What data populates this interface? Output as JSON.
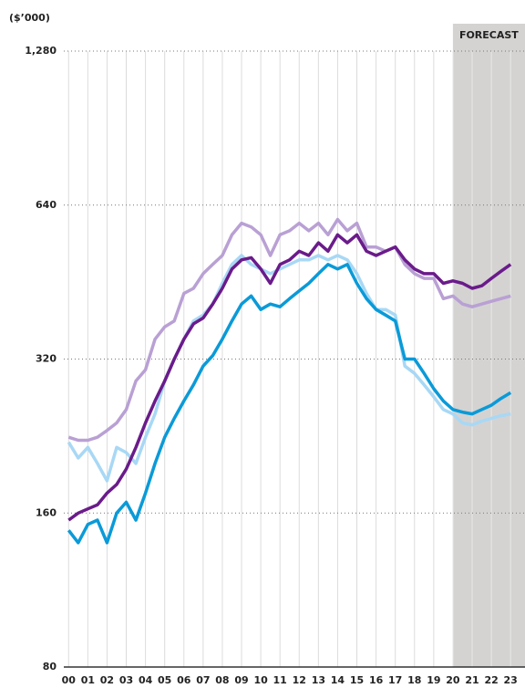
{
  "chart_data": {
    "type": "line",
    "y_axis_label": "($’000)",
    "annotation": "FORECAST",
    "forecast_from": 20,
    "log_y": true,
    "grid": true,
    "xlim": [
      -0.25,
      23.75
    ],
    "xticks": [
      {
        "value": 0,
        "label": "00"
      },
      {
        "value": 1,
        "label": "01"
      },
      {
        "value": 2,
        "label": "02"
      },
      {
        "value": 3,
        "label": "03"
      },
      {
        "value": 4,
        "label": "04"
      },
      {
        "value": 5,
        "label": "05"
      },
      {
        "value": 6,
        "label": "06"
      },
      {
        "value": 7,
        "label": "07"
      },
      {
        "value": 8,
        "label": "08"
      },
      {
        "value": 9,
        "label": "09"
      },
      10,
      11,
      12,
      13,
      14,
      15,
      16,
      17,
      18,
      19,
      20,
      21,
      22,
      23
    ],
    "ylim": [
      80,
      1280
    ],
    "yticks": [
      80,
      160,
      320,
      640,
      {
        "value": 1280,
        "label": "1,280"
      }
    ],
    "x": [
      0,
      0.5,
      1,
      1.5,
      2,
      2.5,
      3,
      3.5,
      4,
      4.5,
      5,
      5.5,
      6,
      6.5,
      7,
      7.5,
      8,
      8.5,
      9,
      9.5,
      10,
      10.5,
      11,
      11.5,
      12,
      12.5,
      13,
      13.5,
      14,
      14.5,
      15,
      15.5,
      16,
      16.5,
      17,
      17.5,
      18,
      18.5,
      19,
      19.5,
      20,
      20.5,
      21,
      21.5,
      22,
      22.5,
      23
    ],
    "series": [
      {
        "color": "#b9a0d4",
        "values": [
          225,
          222,
          222,
          225,
          232,
          240,
          255,
          290,
          305,
          350,
          370,
          380,
          430,
          440,
          470,
          490,
          510,
          560,
          590,
          580,
          560,
          510,
          560,
          570,
          590,
          570,
          590,
          560,
          600,
          570,
          590,
          530,
          530,
          520,
          530,
          490,
          470,
          460,
          460,
          420,
          425,
          410,
          405,
          410,
          415,
          420,
          425
        ]
      },
      {
        "color": "#a8d8f5",
        "values": [
          220,
          205,
          215,
          200,
          185,
          215,
          210,
          200,
          225,
          250,
          290,
          320,
          350,
          380,
          390,
          410,
          450,
          490,
          510,
          490,
          480,
          470,
          480,
          490,
          500,
          500,
          510,
          500,
          510,
          500,
          470,
          430,
          400,
          400,
          390,
          310,
          300,
          285,
          270,
          255,
          250,
          240,
          238,
          242,
          245,
          248,
          250
        ]
      },
      {
        "color": "#6a1b8a",
        "values": [
          155,
          160,
          163,
          166,
          175,
          182,
          195,
          215,
          240,
          265,
          290,
          320,
          350,
          375,
          385,
          410,
          440,
          480,
          500,
          505,
          480,
          450,
          490,
          500,
          520,
          510,
          540,
          520,
          560,
          540,
          560,
          520,
          510,
          520,
          530,
          500,
          480,
          470,
          470,
          450,
          455,
          450,
          440,
          445,
          460,
          475,
          490
        ]
      },
      {
        "color": "#0a9ad8",
        "values": [
          148,
          140,
          152,
          155,
          140,
          160,
          168,
          155,
          175,
          200,
          225,
          245,
          265,
          285,
          310,
          325,
          350,
          380,
          410,
          425,
          400,
          410,
          405,
          420,
          435,
          450,
          470,
          490,
          480,
          490,
          450,
          420,
          400,
          390,
          380,
          320,
          320,
          300,
          280,
          265,
          255,
          252,
          250,
          255,
          260,
          268,
          275
        ]
      }
    ]
  }
}
